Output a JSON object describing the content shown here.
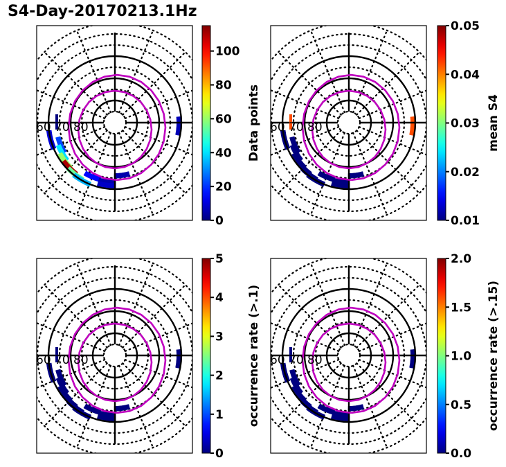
{
  "figure": {
    "title": "S4-Day-20170213.1Hz"
  },
  "chart_data": [
    {
      "type": "heatmap",
      "projection": "polar (north geomagnetic, MLAT vs MLT)",
      "title": "",
      "grid": true,
      "latitude_labels": [
        "60",
        "70",
        "80"
      ],
      "solid_lat_circles": [
        60,
        70,
        80
      ],
      "dotted_lat_circles": [
        45,
        50,
        55,
        65,
        75,
        85
      ],
      "colorbar": {
        "label": "Data points",
        "range": [
          0,
          115
        ],
        "ticks": [
          0,
          20,
          40,
          60,
          80,
          100
        ],
        "tick_labels": [
          "0",
          "20",
          "40",
          "60",
          "80",
          "100"
        ],
        "colormap": "jet"
      },
      "oval_lat_equatorward_midnight": 62,
      "oval_lat_poleward_midnight": 67,
      "cells_description": "Bins concentrated in pre-midnight/evening sector (~18-24 MLT) at 58-68 MLAT; peak ~110 data points near 60-62 MLAT ~20 MLT",
      "cells": [
        {
          "mlt": 19.5,
          "mlat": 63.5,
          "value": 22
        },
        {
          "mlt": 20.0,
          "mlat": 62.5,
          "value": 40
        },
        {
          "mlt": 20.5,
          "mlat": 61.5,
          "value": 60
        },
        {
          "mlt": 21.0,
          "mlat": 61.0,
          "value": 110
        },
        {
          "mlt": 21.5,
          "mlat": 60.5,
          "value": 55
        },
        {
          "mlt": 22.0,
          "mlat": 60.0,
          "value": 35
        },
        {
          "mlt": 19.0,
          "mlat": 60.0,
          "value": 10
        },
        {
          "mlt": 22.5,
          "mlat": 63.5,
          "value": 15
        },
        {
          "mlt": 23.5,
          "mlat": 63.0,
          "value": 5
        },
        {
          "mlt": 23.5,
          "mlat": 61.5,
          "value": 8
        },
        {
          "mlt": 0.5,
          "mlat": 66.0,
          "value": 5
        },
        {
          "mlt": 5.8,
          "mlat": 61.0,
          "value": 6
        }
      ]
    },
    {
      "type": "heatmap",
      "projection": "polar (north geomagnetic, MLAT vs MLT)",
      "title": "",
      "grid": true,
      "latitude_labels": [
        "60",
        "70",
        "80"
      ],
      "colorbar": {
        "label": "mean S4",
        "range": [
          0.01,
          0.05
        ],
        "ticks": [
          0.01,
          0.02,
          0.03,
          0.04,
          0.05
        ],
        "tick_labels": [
          "0.01",
          "0.02",
          "0.03",
          "0.04",
          "0.05"
        ],
        "colormap": "jet"
      },
      "cells_description": "Same bins as panel 1, nearly all at ~0.01 (dark blue); one bin near 06 MLT/61 MLAT at ~0.042 (orange)",
      "cells": [
        {
          "mlt": 19.5,
          "mlat": 63.5,
          "value": 0.01
        },
        {
          "mlt": 20.0,
          "mlat": 62.5,
          "value": 0.01
        },
        {
          "mlt": 20.5,
          "mlat": 61.5,
          "value": 0.01
        },
        {
          "mlt": 21.0,
          "mlat": 61.0,
          "value": 0.01
        },
        {
          "mlt": 21.5,
          "mlat": 60.5,
          "value": 0.01
        },
        {
          "mlt": 22.0,
          "mlat": 60.0,
          "value": 0.01
        },
        {
          "mlt": 19.0,
          "mlat": 60.0,
          "value": 0.01
        },
        {
          "mlt": 22.5,
          "mlat": 63.5,
          "value": 0.01
        },
        {
          "mlt": 23.5,
          "mlat": 63.0,
          "value": 0.01
        },
        {
          "mlt": 23.5,
          "mlat": 61.5,
          "value": 0.01
        },
        {
          "mlt": 0.5,
          "mlat": 66.0,
          "value": 0.01
        },
        {
          "mlt": 5.8,
          "mlat": 61.0,
          "value": 0.042
        }
      ]
    },
    {
      "type": "heatmap",
      "projection": "polar (north geomagnetic, MLAT vs MLT)",
      "title": "",
      "grid": true,
      "latitude_labels": [
        "60",
        "70",
        "80"
      ],
      "colorbar": {
        "label": "occurrence rate (>.1)",
        "range": [
          0,
          5
        ],
        "ticks": [
          0,
          1,
          2,
          3,
          4,
          5
        ],
        "tick_labels": [
          "0",
          "1",
          "2",
          "3",
          "4",
          "5"
        ],
        "colormap": "jet"
      },
      "cells_description": "All bins at 0 (dark blue)",
      "cells": [
        {
          "mlt": 19.5,
          "mlat": 63.5,
          "value": 0
        },
        {
          "mlt": 20.0,
          "mlat": 62.5,
          "value": 0
        },
        {
          "mlt": 20.5,
          "mlat": 61.5,
          "value": 0
        },
        {
          "mlt": 21.0,
          "mlat": 61.0,
          "value": 0
        },
        {
          "mlt": 21.5,
          "mlat": 60.5,
          "value": 0
        },
        {
          "mlt": 22.0,
          "mlat": 60.0,
          "value": 0
        },
        {
          "mlt": 19.0,
          "mlat": 60.0,
          "value": 0
        },
        {
          "mlt": 22.5,
          "mlat": 63.5,
          "value": 0
        },
        {
          "mlt": 23.5,
          "mlat": 63.0,
          "value": 0
        },
        {
          "mlt": 23.5,
          "mlat": 61.5,
          "value": 0
        },
        {
          "mlt": 0.5,
          "mlat": 66.0,
          "value": 0
        },
        {
          "mlt": 5.8,
          "mlat": 61.0,
          "value": 0
        }
      ]
    },
    {
      "type": "heatmap",
      "projection": "polar (north geomagnetic, MLAT vs MLT)",
      "title": "",
      "grid": true,
      "latitude_labels": [
        "60",
        "70",
        "80"
      ],
      "colorbar": {
        "label": "occurrence rate (>.15)",
        "range": [
          0.0,
          2.0
        ],
        "ticks": [
          0.0,
          0.5,
          1.0,
          1.5,
          2.0
        ],
        "tick_labels": [
          "0.0",
          "0.5",
          "1.0",
          "1.5",
          "2.0"
        ],
        "colormap": "jet"
      },
      "cells_description": "All bins at 0 (dark blue)",
      "cells": [
        {
          "mlt": 19.5,
          "mlat": 63.5,
          "value": 0
        },
        {
          "mlt": 20.0,
          "mlat": 62.5,
          "value": 0
        },
        {
          "mlt": 20.5,
          "mlat": 61.5,
          "value": 0
        },
        {
          "mlt": 21.0,
          "mlat": 61.0,
          "value": 0
        },
        {
          "mlt": 21.5,
          "mlat": 60.5,
          "value": 0
        },
        {
          "mlt": 22.0,
          "mlat": 60.0,
          "value": 0
        },
        {
          "mlt": 19.0,
          "mlat": 60.0,
          "value": 0
        },
        {
          "mlt": 22.5,
          "mlat": 63.5,
          "value": 0
        },
        {
          "mlt": 23.5,
          "mlat": 63.0,
          "value": 0
        },
        {
          "mlt": 23.5,
          "mlat": 61.5,
          "value": 0
        },
        {
          "mlt": 0.5,
          "mlat": 66.0,
          "value": 0
        },
        {
          "mlt": 5.8,
          "mlat": 61.0,
          "value": 0
        }
      ]
    }
  ],
  "colors": {
    "oval": "#bf00bf",
    "grid": "#000000"
  }
}
